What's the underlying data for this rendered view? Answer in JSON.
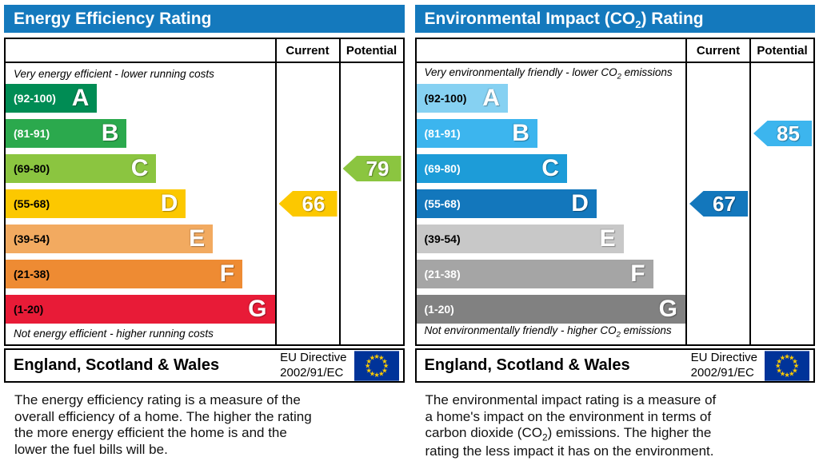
{
  "chart_data": [
    {
      "type": "bar",
      "title": "Energy Efficiency Rating",
      "categories": [
        "A (92-100)",
        "B (81-91)",
        "C (69-80)",
        "D (55-68)",
        "E (39-54)",
        "F (21-38)",
        "G (1-20)"
      ],
      "band_widths_pct": [
        34,
        45,
        56,
        67,
        77,
        88,
        100
      ],
      "current": 66,
      "current_band": "D",
      "potential": 79,
      "potential_band": "C",
      "top_label": "Very energy efficient - lower running costs",
      "bottom_label": "Not energy efficient - higher running costs"
    },
    {
      "type": "bar",
      "title": "Environmental Impact (CO2) Rating",
      "categories": [
        "A (92-100)",
        "B (81-91)",
        "C (69-80)",
        "D (55-68)",
        "E (39-54)",
        "F (21-38)",
        "G (1-20)"
      ],
      "band_widths_pct": [
        34,
        45,
        56,
        67,
        77,
        88,
        100
      ],
      "current": 67,
      "current_band": "D",
      "potential": 85,
      "potential_band": "B",
      "top_label": "Very environmentally friendly - lower CO2 emissions",
      "bottom_label": "Not environmentally friendly - higher CO2 emissions"
    }
  ],
  "left_panel": {
    "title": "Energy Efficiency Rating",
    "header_color": "#1479bd",
    "columns": {
      "current": "Current",
      "potential": "Potential"
    },
    "caption_top": "Very energy efficient - lower running costs",
    "caption_bottom": "Not energy efficient - higher running costs",
    "bands": [
      {
        "range": "(92-100)",
        "letter": "A",
        "color": "#008c54",
        "width_pct": 34,
        "label_color": "#ffffff"
      },
      {
        "range": "(81-91)",
        "letter": "B",
        "color": "#2ba94d",
        "width_pct": 45,
        "label_color": "#ffffff"
      },
      {
        "range": "(69-80)",
        "letter": "C",
        "color": "#8bc540",
        "width_pct": 56,
        "label_color": "#000000"
      },
      {
        "range": "(55-68)",
        "letter": "D",
        "color": "#fcc800",
        "width_pct": 67,
        "label_color": "#000000"
      },
      {
        "range": "(39-54)",
        "letter": "E",
        "color": "#f2aa60",
        "width_pct": 77,
        "label_color": "#000000"
      },
      {
        "range": "(21-38)",
        "letter": "F",
        "color": "#ee8b33",
        "width_pct": 88,
        "label_color": "#000000"
      },
      {
        "range": "(1-20)",
        "letter": "G",
        "color": "#e81b37",
        "width_pct": 100,
        "label_color": "#000000"
      }
    ],
    "current": {
      "value": "66",
      "color": "#fcc800",
      "row": 3
    },
    "potential": {
      "value": "79",
      "color": "#8bc540",
      "row": 2
    },
    "footer": {
      "region": "England, Scotland & Wales",
      "directive_line1": "EU Directive",
      "directive_line2": "2002/91/EC"
    },
    "description": [
      "The energy efficiency rating is a measure of the",
      "overall efficiency of a home. The higher the rating",
      "the more energy efficient the home is and the",
      "lower the fuel bills will be."
    ]
  },
  "right_panel": {
    "title_pre": "Environmental Impact (CO",
    "title_sub": "2",
    "title_post": ") Rating",
    "header_color": "#1479bd",
    "columns": {
      "current": "Current",
      "potential": "Potential"
    },
    "caption_top": {
      "pre": "Very environmentally friendly - lower CO",
      "sub": "2",
      "post": " emissions"
    },
    "caption_bottom": {
      "pre": "Not environmentally friendly - higher CO",
      "sub": "2",
      "post": " emissions"
    },
    "bands": [
      {
        "range": "(92-100)",
        "letter": "A",
        "color": "#86d1f2",
        "width_pct": 34,
        "label_color": "#000000"
      },
      {
        "range": "(81-91)",
        "letter": "B",
        "color": "#3cb5ee",
        "width_pct": 45,
        "label_color": "#ffffff"
      },
      {
        "range": "(69-80)",
        "letter": "C",
        "color": "#1d9cd8",
        "width_pct": 56,
        "label_color": "#ffffff"
      },
      {
        "range": "(55-68)",
        "letter": "D",
        "color": "#1377bc",
        "width_pct": 67,
        "label_color": "#ffffff"
      },
      {
        "range": "(39-54)",
        "letter": "E",
        "color": "#c8c8c8",
        "width_pct": 77,
        "label_color": "#000000"
      },
      {
        "range": "(21-38)",
        "letter": "F",
        "color": "#a5a5a5",
        "width_pct": 88,
        "label_color": "#ffffff"
      },
      {
        "range": "(1-20)",
        "letter": "G",
        "color": "#818181",
        "width_pct": 100,
        "label_color": "#ffffff"
      }
    ],
    "current": {
      "value": "67",
      "color": "#1377bc",
      "row": 3
    },
    "potential": {
      "value": "85",
      "color": "#3cb5ee",
      "row": 1
    },
    "footer": {
      "region": "England, Scotland & Wales",
      "directive_line1": "EU Directive",
      "directive_line2": "2002/91/EC"
    },
    "description": [
      "The environmental impact rating is a measure of",
      "a home's impact on the environment in terms of",
      {
        "pre": "carbon dioxide (CO",
        "sub": "2",
        "post": ") emissions. The higher the"
      },
      "rating the less impact it has on the environment."
    ]
  },
  "eu_flag": {
    "background": "#003399",
    "star_color": "#ffcc00"
  }
}
